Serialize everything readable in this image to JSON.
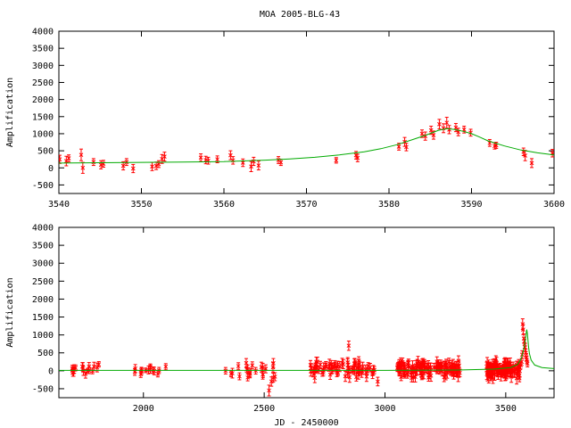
{
  "title": "MOA 2005-BLG-43",
  "colors": {
    "data_points": "#ff0000",
    "model_curve": "#00aa00",
    "axes": "#000000"
  },
  "chart_data": [
    {
      "type": "scatter",
      "name": "zoom",
      "xlabel": "",
      "ylabel": "Amplification",
      "xlim": [
        3540,
        3600
      ],
      "ylim": [
        -750,
        4000
      ],
      "xticks": [
        3540,
        3550,
        3560,
        3570,
        3580,
        3590,
        3600
      ],
      "yticks": [
        -500,
        0,
        500,
        1000,
        1500,
        2000,
        2500,
        3000,
        3500,
        4000
      ],
      "grid": false,
      "series": [
        {
          "kind": "points_with_errorbars",
          "points": [
            {
              "x": 3540.1,
              "y": 250,
              "err": 120
            },
            {
              "x": 3540.9,
              "y": 200,
              "err": 140
            },
            {
              "x": 3541.2,
              "y": 280,
              "err": 100
            },
            {
              "x": 3542.7,
              "y": 380,
              "err": 170
            },
            {
              "x": 3542.9,
              "y": 0,
              "err": 160
            },
            {
              "x": 3544.2,
              "y": 170,
              "err": 100
            },
            {
              "x": 3545.1,
              "y": 90,
              "err": 120
            },
            {
              "x": 3545.4,
              "y": 120,
              "err": 100
            },
            {
              "x": 3547.8,
              "y": 60,
              "err": 120
            },
            {
              "x": 3548.2,
              "y": 170,
              "err": 100
            },
            {
              "x": 3549.0,
              "y": -20,
              "err": 120
            },
            {
              "x": 3551.3,
              "y": 40,
              "err": 120
            },
            {
              "x": 3551.8,
              "y": 60,
              "err": 110
            },
            {
              "x": 3552.1,
              "y": 110,
              "err": 100
            },
            {
              "x": 3552.5,
              "y": 260,
              "err": 130
            },
            {
              "x": 3552.8,
              "y": 330,
              "err": 130
            },
            {
              "x": 3557.2,
              "y": 300,
              "err": 110
            },
            {
              "x": 3557.8,
              "y": 230,
              "err": 110
            },
            {
              "x": 3558.1,
              "y": 210,
              "err": 100
            },
            {
              "x": 3559.2,
              "y": 250,
              "err": 100
            },
            {
              "x": 3560.8,
              "y": 370,
              "err": 130
            },
            {
              "x": 3561.1,
              "y": 220,
              "err": 110
            },
            {
              "x": 3562.3,
              "y": 150,
              "err": 110
            },
            {
              "x": 3563.3,
              "y": 40,
              "err": 150
            },
            {
              "x": 3563.6,
              "y": 190,
              "err": 120
            },
            {
              "x": 3564.2,
              "y": 70,
              "err": 130
            },
            {
              "x": 3566.6,
              "y": 230,
              "err": 100
            },
            {
              "x": 3566.9,
              "y": 160,
              "err": 90
            },
            {
              "x": 3573.6,
              "y": 220,
              "err": 80
            },
            {
              "x": 3576.0,
              "y": 370,
              "err": 110
            },
            {
              "x": 3576.2,
              "y": 290,
              "err": 110
            },
            {
              "x": 3581.2,
              "y": 620,
              "err": 100
            },
            {
              "x": 3581.9,
              "y": 760,
              "err": 130
            },
            {
              "x": 3582.1,
              "y": 610,
              "err": 110
            },
            {
              "x": 3584.0,
              "y": 1000,
              "err": 110
            },
            {
              "x": 3584.4,
              "y": 930,
              "err": 120
            },
            {
              "x": 3585.1,
              "y": 1100,
              "err": 120
            },
            {
              "x": 3585.4,
              "y": 960,
              "err": 120
            },
            {
              "x": 3586.1,
              "y": 1280,
              "err": 140
            },
            {
              "x": 3586.6,
              "y": 1160,
              "err": 130
            },
            {
              "x": 3587.0,
              "y": 1320,
              "err": 160
            },
            {
              "x": 3587.3,
              "y": 1120,
              "err": 120
            },
            {
              "x": 3588.1,
              "y": 1180,
              "err": 120
            },
            {
              "x": 3588.4,
              "y": 1050,
              "err": 110
            },
            {
              "x": 3589.1,
              "y": 1120,
              "err": 100
            },
            {
              "x": 3589.9,
              "y": 1030,
              "err": 100
            },
            {
              "x": 3592.2,
              "y": 730,
              "err": 100
            },
            {
              "x": 3592.8,
              "y": 640,
              "err": 90
            },
            {
              "x": 3593.0,
              "y": 660,
              "err": 90
            },
            {
              "x": 3596.3,
              "y": 470,
              "err": 110
            },
            {
              "x": 3596.5,
              "y": 360,
              "err": 150
            },
            {
              "x": 3597.3,
              "y": 140,
              "err": 130
            },
            {
              "x": 3599.8,
              "y": 430,
              "err": 110
            }
          ]
        },
        {
          "kind": "model_curve",
          "points": [
            [
              3540,
              140
            ],
            [
              3545,
              150
            ],
            [
              3550,
              160
            ],
            [
              3555,
              170
            ],
            [
              3560,
              185
            ],
            [
              3565,
              225
            ],
            [
              3568,
              260
            ],
            [
              3571,
              310
            ],
            [
              3574,
              380
            ],
            [
              3577,
              470
            ],
            [
              3579,
              560
            ],
            [
              3581,
              680
            ],
            [
              3583,
              840
            ],
            [
              3584.5,
              960
            ],
            [
              3586,
              1100
            ],
            [
              3587,
              1150
            ],
            [
              3588,
              1120
            ],
            [
              3589,
              1070
            ],
            [
              3590,
              1000
            ],
            [
              3591,
              900
            ],
            [
              3592,
              790
            ],
            [
              3594,
              640
            ],
            [
              3596,
              520
            ],
            [
              3598,
              440
            ],
            [
              3600,
              380
            ]
          ]
        }
      ]
    },
    {
      "type": "scatter",
      "name": "full",
      "xlabel": "JD - 2450000",
      "ylabel": "Amplification",
      "xlim": [
        1650,
        3700
      ],
      "ylim": [
        -750,
        4000
      ],
      "xticks": [
        2000,
        2500,
        3000,
        3500
      ],
      "yticks": [
        -500,
        0,
        500,
        1000,
        1500,
        2000,
        2500,
        3000,
        3500,
        4000
      ],
      "grid": false,
      "series": [
        {
          "kind": "points_with_errorbars",
          "clusters": [
            {
              "x_from": 1700,
              "x_to": 1820,
              "count": 18,
              "y_mid": 20,
              "y_spread": 180,
              "err": 100
            },
            {
              "x_from": 1960,
              "x_to": 2100,
              "count": 14,
              "y_mid": 0,
              "y_spread": 150,
              "err": 90
            },
            {
              "x_from": 2340,
              "x_to": 2560,
              "count": 22,
              "y_mid": 0,
              "y_spread": 260,
              "err": 110
            },
            {
              "x_from": 2690,
              "x_to": 2960,
              "count": 70,
              "y_mid": 50,
              "y_spread": 260,
              "err": 110
            },
            {
              "x_from": 3050,
              "x_to": 3310,
              "count": 120,
              "y_mid": 50,
              "y_spread": 260,
              "err": 120
            },
            {
              "x_from": 3420,
              "x_to": 3560,
              "count": 110,
              "y_mid": 30,
              "y_spread": 280,
              "err": 130
            }
          ],
          "points": [
            {
              "x": 2850,
              "y": 700,
              "err": 130
            },
            {
              "x": 2520,
              "y": -550,
              "err": 150
            },
            {
              "x": 2530,
              "y": -300,
              "err": 130
            },
            {
              "x": 2970,
              "y": -300,
              "err": 120
            },
            {
              "x": 3570,
              "y": 1300,
              "err": 150
            },
            {
              "x": 3572,
              "y": 1150,
              "err": 140
            },
            {
              "x": 3575,
              "y": 900,
              "err": 130
            },
            {
              "x": 3578,
              "y": 750,
              "err": 120
            },
            {
              "x": 3580,
              "y": 650,
              "err": 110
            },
            {
              "x": 3583,
              "y": 500,
              "err": 110
            },
            {
              "x": 3585,
              "y": 380,
              "err": 100
            },
            {
              "x": 3587,
              "y": 300,
              "err": 100
            },
            {
              "x": 3590,
              "y": 200,
              "err": 90
            },
            {
              "x": 3568,
              "y": 450,
              "err": 110
            },
            {
              "x": 3566,
              "y": 250,
              "err": 100
            },
            {
              "x": 3562,
              "y": 150,
              "err": 100
            }
          ]
        },
        {
          "kind": "model_curve",
          "points": [
            [
              1650,
              10
            ],
            [
              3000,
              12
            ],
            [
              3300,
              20
            ],
            [
              3450,
              45
            ],
            [
              3520,
              90
            ],
            [
              3550,
              180
            ],
            [
              3565,
              360
            ],
            [
              3575,
              620
            ],
            [
              3580,
              800
            ],
            [
              3584,
              990
            ],
            [
              3587,
              1150
            ],
            [
              3590,
              1020
            ],
            [
              3594,
              700
            ],
            [
              3598,
              480
            ],
            [
              3605,
              300
            ],
            [
              3620,
              160
            ],
            [
              3650,
              90
            ],
            [
              3700,
              60
            ]
          ]
        }
      ]
    }
  ]
}
